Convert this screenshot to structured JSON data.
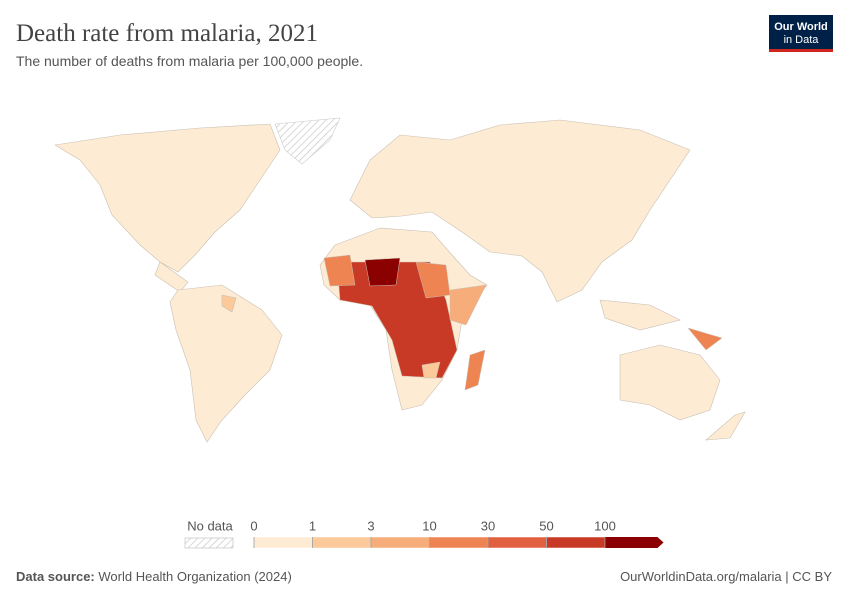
{
  "header": {
    "title": "Death rate from malaria, 2021",
    "subtitle": "The number of deaths from malaria per 100,000 people."
  },
  "logo": {
    "line1": "Our World",
    "line2": "in Data"
  },
  "legend": {
    "no_data": "No data",
    "bins": [
      0,
      1,
      3,
      10,
      30,
      50,
      100
    ],
    "colors": [
      "#fdebd3",
      "#fbc99a",
      "#f6ad7a",
      "#ee8452",
      "#e06040",
      "#c93a26",
      "#8b0000"
    ]
  },
  "footer": {
    "source_label": "Data source:",
    "source": "World Health Organization (2024)",
    "url": "OurWorldinData.org/malaria | CC BY"
  }
}
